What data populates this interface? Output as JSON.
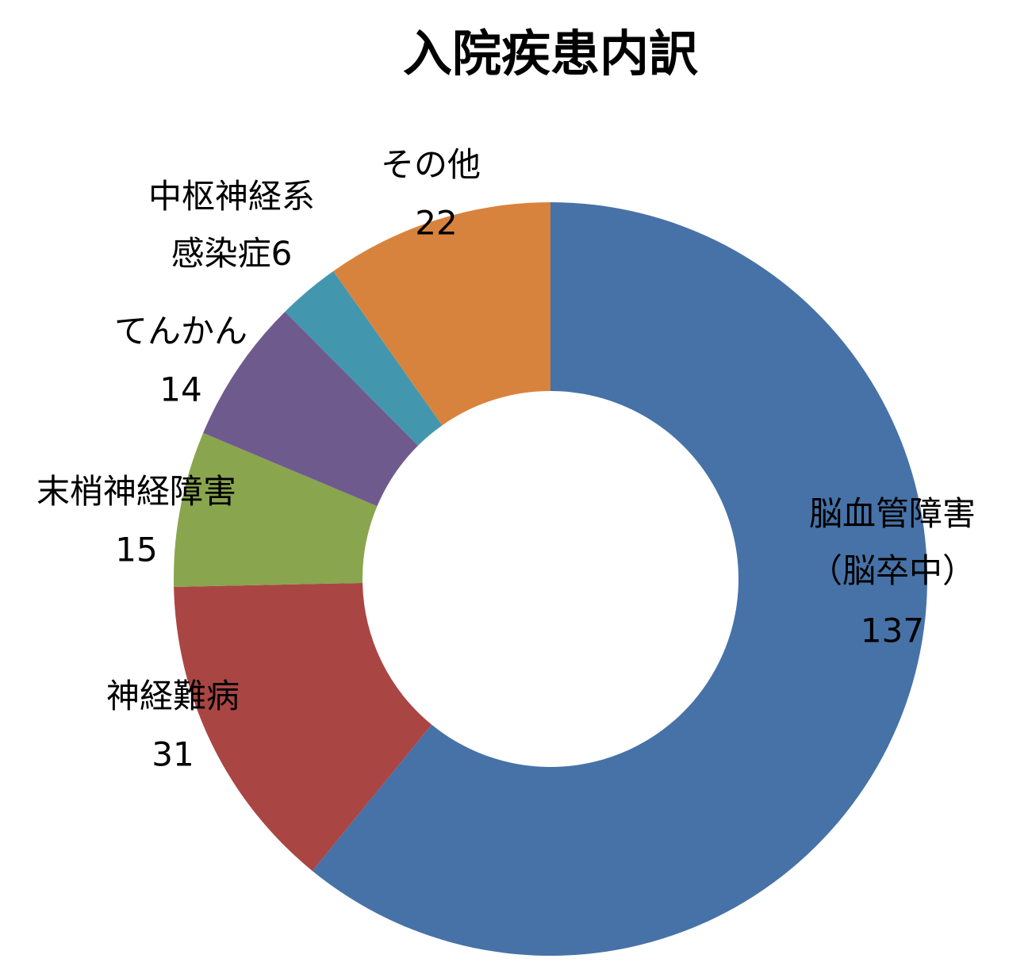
{
  "chart_data": {
    "type": "donut",
    "title": "入院疾患内訳",
    "categories": [
      [
        "脳血管障害",
        "（脳卒中）"
      ],
      [
        "神経難病"
      ],
      [
        "末梢神経障害"
      ],
      [
        "てんかん"
      ],
      [
        "中枢神経系",
        "感染症"
      ],
      [
        "その他"
      ]
    ],
    "values": [
      137,
      31,
      15,
      14,
      6,
      22
    ],
    "colors": [
      "#4672a7",
      "#a94644",
      "#89a54e",
      "#6f5a8d",
      "#4297ae",
      "#d8833d"
    ]
  }
}
